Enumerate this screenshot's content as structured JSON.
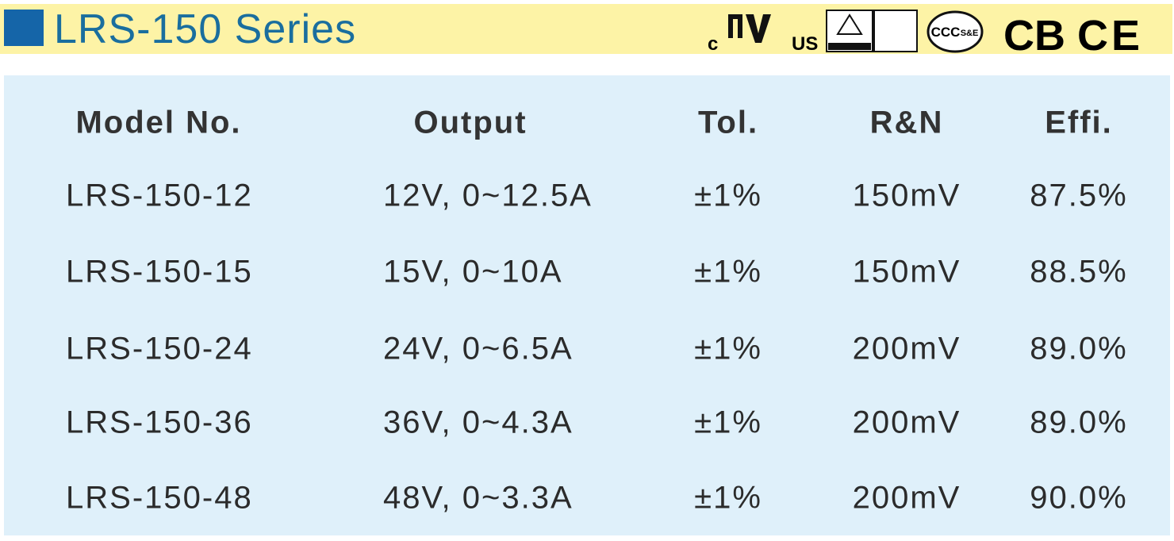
{
  "header": {
    "title": "LRS-150 Series",
    "marks": {
      "ul_left": "c",
      "ul_right": "US",
      "ccc": "CCC",
      "ccc_sub": "S&E",
      "cb": "CB",
      "ce": "CE"
    }
  },
  "table": {
    "columns": [
      "Model No.",
      "Output",
      "Tol.",
      "R&N",
      "Effi."
    ],
    "rows": [
      [
        "LRS-150-12",
        "12V, 0~12.5A",
        "±1%",
        "150mV",
        "87.5%"
      ],
      [
        "LRS-150-15",
        "15V, 0~10A",
        "±1%",
        "150mV",
        "88.5%"
      ],
      [
        "LRS-150-24",
        "24V, 0~6.5A",
        "±1%",
        "200mV",
        "89.0%"
      ],
      [
        "LRS-150-36",
        "36V, 0~4.3A",
        "±1%",
        "200mV",
        "89.0%"
      ],
      [
        "LRS-150-48",
        "48V, 0~3.3A",
        "±1%",
        "200mV",
        "90.0%"
      ]
    ]
  }
}
